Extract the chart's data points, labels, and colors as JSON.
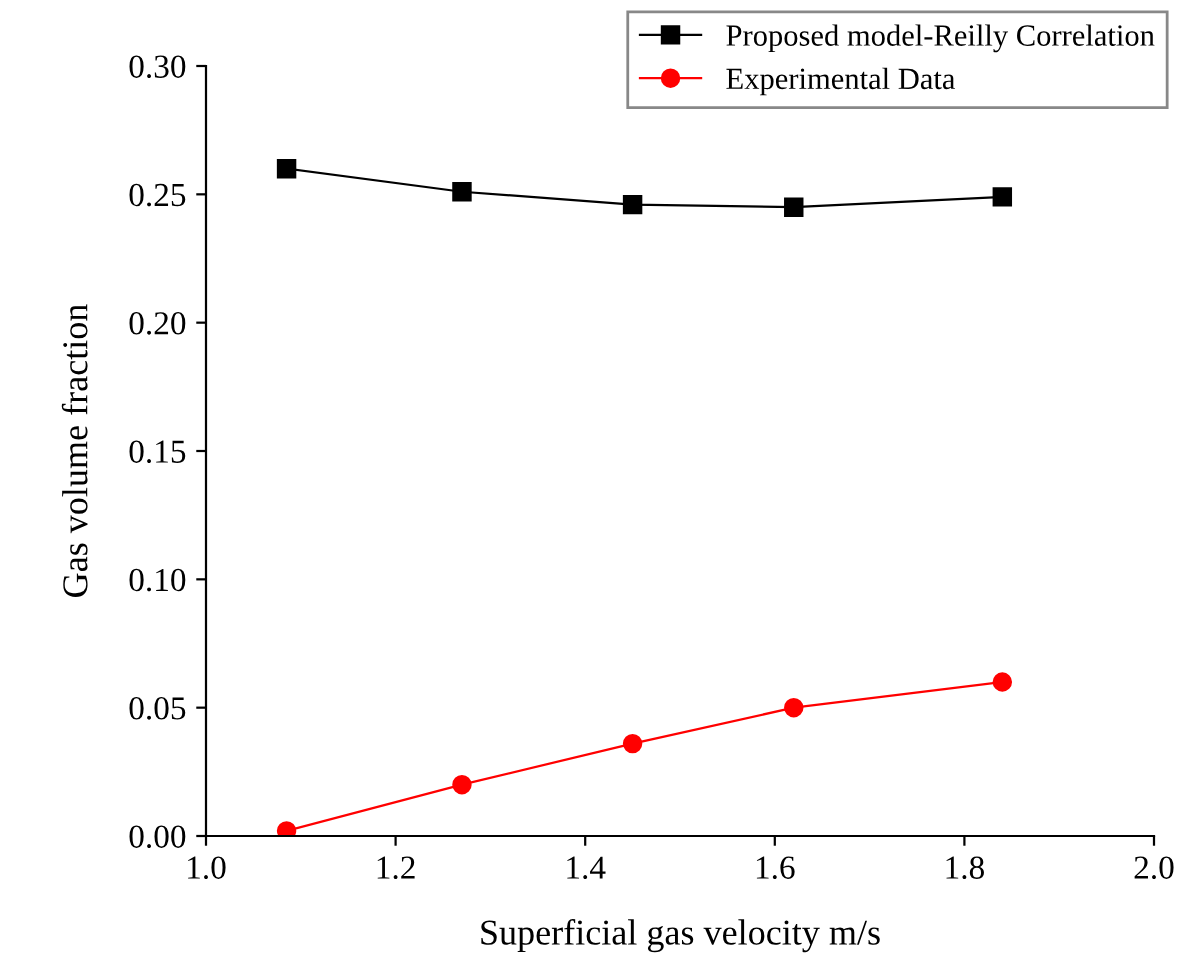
{
  "chart_data": {
    "type": "line",
    "xlabel": "Superficial gas velocity m/s",
    "ylabel": "Gas volume fraction",
    "x": [
      1.085,
      1.27,
      1.45,
      1.62,
      1.84
    ],
    "series": [
      {
        "name": "Proposed model-Reilly Correlation",
        "color": "#000000",
        "values": [
          0.26,
          0.251,
          0.246,
          0.245,
          0.249
        ],
        "marker": "square"
      },
      {
        "name": "Experimental Data",
        "color": "#ff0000",
        "values": [
          0.002,
          0.02,
          0.036,
          0.05,
          0.06
        ],
        "marker": "circle"
      }
    ],
    "xlim": [
      1.0,
      2.0
    ],
    "xticks": [
      {
        "value": 1.0,
        "label": "1.0"
      },
      1.2,
      1.4,
      1.6,
      1.8,
      {
        "value": 2.0,
        "label": "2.0"
      }
    ],
    "ylim": [
      0,
      0.3
    ],
    "yticks": [
      {
        "value": 0,
        "label": "0.00"
      },
      {
        "value": 0.05,
        "label": "0.05"
      },
      {
        "value": 0.1,
        "label": "0.10"
      },
      {
        "value": 0.15,
        "label": "0.15"
      },
      {
        "value": 0.2,
        "label": "0.20"
      },
      {
        "value": 0.25,
        "label": "0.25"
      },
      {
        "value": 0.3,
        "label": "0.30"
      }
    ],
    "grid": false,
    "legend": "top right",
    "line_style": "solid"
  }
}
